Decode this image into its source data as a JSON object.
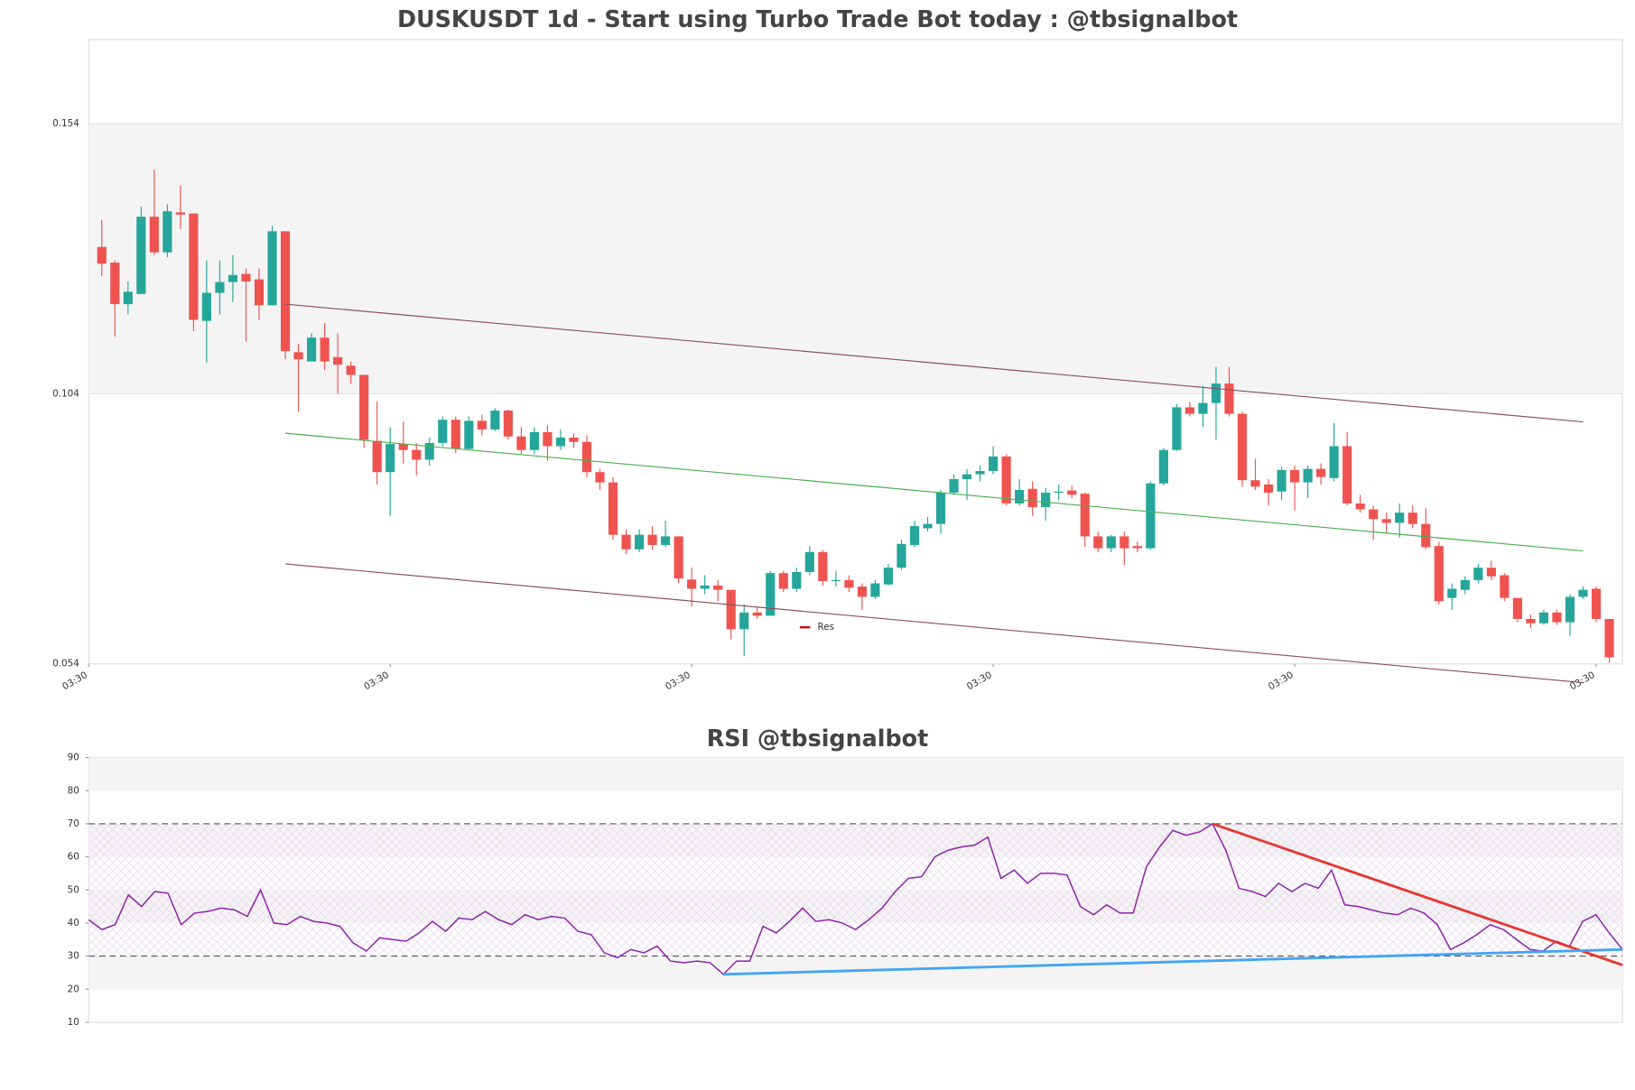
{
  "chart_data": [
    {
      "type": "candlestick",
      "title": "DUSKUSDT 1d - Start using Turbo Trade Bot today : @tbsignalbot",
      "open": [
        0.1312,
        0.1283,
        0.1206,
        0.1225,
        0.1368,
        0.1302,
        0.1376,
        0.1374,
        0.1175,
        0.1227,
        0.1247,
        0.1262,
        0.1252,
        0.1204,
        0.1341,
        0.1117,
        0.11,
        0.1144,
        0.1108,
        0.1092,
        0.1075,
        0.0953,
        0.0895,
        0.0947,
        0.0936,
        0.0918,
        0.0949,
        0.0992,
        0.0938,
        0.099,
        0.0974,
        0.1009,
        0.0961,
        0.0936,
        0.0969,
        0.0943,
        0.0959,
        0.0951,
        0.0895,
        0.0876,
        0.0779,
        0.0752,
        0.0779,
        0.076,
        0.0776,
        0.0696,
        0.0679,
        0.0685,
        0.0677,
        0.0604,
        0.0635,
        0.0629,
        0.0708,
        0.0679,
        0.071,
        0.0747,
        0.0693,
        0.0695,
        0.0683,
        0.0664,
        0.0687,
        0.0718,
        0.076,
        0.0791,
        0.0799,
        0.0857,
        0.0882,
        0.0891,
        0.0897,
        0.0924,
        0.0837,
        0.0864,
        0.083,
        0.0857,
        0.0861,
        0.0855,
        0.0776,
        0.0754,
        0.0776,
        0.0758,
        0.0754,
        0.0874,
        0.0936,
        0.1015,
        0.1003,
        0.1023,
        0.1059,
        0.1003,
        0.088,
        0.0872,
        0.0859,
        0.0899,
        0.0876,
        0.0901,
        0.0884,
        0.0943,
        0.0837,
        0.0826,
        0.0808,
        0.0801,
        0.082,
        0.0799,
        0.0758,
        0.0662,
        0.0677,
        0.0695,
        0.0718,
        0.0704,
        0.0662,
        0.0623,
        0.0615,
        0.0635,
        0.0617,
        0.0664,
        0.0679,
        0.0623
      ],
      "high": [
        0.1362,
        0.1287,
        0.1248,
        0.1387,
        0.1455,
        0.1391,
        0.1426,
        0.1374,
        0.1287,
        0.1287,
        0.1297,
        0.1272,
        0.1272,
        0.1351,
        0.1341,
        0.1133,
        0.1152,
        0.1171,
        0.1152,
        0.11,
        0.1075,
        0.1026,
        0.0978,
        0.0988,
        0.0949,
        0.0959,
        0.0998,
        0.0998,
        0.0998,
        0.1001,
        0.1013,
        0.1011,
        0.0978,
        0.0978,
        0.0982,
        0.0974,
        0.0967,
        0.0963,
        0.0901,
        0.0886,
        0.0789,
        0.0789,
        0.0795,
        0.0805,
        0.0776,
        0.0718,
        0.0704,
        0.0695,
        0.0677,
        0.065,
        0.0644,
        0.0712,
        0.0712,
        0.0718,
        0.0758,
        0.0751,
        0.0712,
        0.0704,
        0.0689,
        0.0695,
        0.0725,
        0.077,
        0.0805,
        0.0812,
        0.0862,
        0.0891,
        0.0901,
        0.0907,
        0.0943,
        0.0928,
        0.0882,
        0.0878,
        0.0866,
        0.0872,
        0.087,
        0.0857,
        0.0785,
        0.0779,
        0.0785,
        0.0766,
        0.0878,
        0.094,
        0.1021,
        0.1025,
        0.1055,
        0.109,
        0.109,
        0.1007,
        0.092,
        0.0882,
        0.0905,
        0.0907,
        0.0907,
        0.0911,
        0.0986,
        0.0969,
        0.0853,
        0.0833,
        0.082,
        0.0837,
        0.0833,
        0.0828,
        0.0766,
        0.0689,
        0.0702,
        0.0725,
        0.0731,
        0.0708,
        0.0662,
        0.0631,
        0.064,
        0.064,
        0.0669,
        0.0683,
        0.0683,
        0.0623
      ],
      "low": [
        0.1258,
        0.1146,
        0.1187,
        0.1225,
        0.1297,
        0.1293,
        0.1345,
        0.1156,
        0.1098,
        0.1187,
        0.121,
        0.1137,
        0.1177,
        0.1204,
        0.1104,
        0.1007,
        0.11,
        0.1084,
        0.104,
        0.1059,
        0.094,
        0.0872,
        0.0814,
        0.0911,
        0.0889,
        0.0907,
        0.0943,
        0.093,
        0.0936,
        0.0963,
        0.0971,
        0.0955,
        0.0928,
        0.0928,
        0.0916,
        0.0936,
        0.094,
        0.0886,
        0.0862,
        0.077,
        0.0743,
        0.0747,
        0.0751,
        0.0756,
        0.0689,
        0.0646,
        0.0669,
        0.0656,
        0.0585,
        0.0554,
        0.0623,
        0.0629,
        0.0673,
        0.0673,
        0.0704,
        0.0685,
        0.0683,
        0.0673,
        0.064,
        0.066,
        0.0685,
        0.0714,
        0.0756,
        0.0785,
        0.0781,
        0.0853,
        0.0843,
        0.0878,
        0.0891,
        0.0833,
        0.0833,
        0.0814,
        0.0805,
        0.0843,
        0.0847,
        0.0756,
        0.0747,
        0.0747,
        0.0723,
        0.0747,
        0.0751,
        0.087,
        0.0934,
        0.0998,
        0.0978,
        0.0955,
        0.0998,
        0.0868,
        0.0862,
        0.0833,
        0.0843,
        0.0824,
        0.0847,
        0.0872,
        0.0878,
        0.0833,
        0.082,
        0.077,
        0.0781,
        0.0774,
        0.0791,
        0.0752,
        0.065,
        0.064,
        0.0669,
        0.0689,
        0.0695,
        0.0656,
        0.0617,
        0.0606,
        0.0612,
        0.0612,
        0.0592,
        0.066,
        0.0617,
        0.0542
      ],
      "close": [
        0.1281,
        0.1206,
        0.1229,
        0.1368,
        0.1302,
        0.1378,
        0.1372,
        0.1177,
        0.1227,
        0.1247,
        0.126,
        0.1248,
        0.1204,
        0.1341,
        0.1119,
        0.1104,
        0.1144,
        0.11,
        0.1094,
        0.1075,
        0.0955,
        0.0895,
        0.0947,
        0.0936,
        0.0918,
        0.0949,
        0.0992,
        0.0938,
        0.099,
        0.0974,
        0.1009,
        0.0961,
        0.0936,
        0.0969,
        0.0943,
        0.0959,
        0.0951,
        0.0895,
        0.0876,
        0.0779,
        0.0752,
        0.0779,
        0.076,
        0.0776,
        0.0698,
        0.0679,
        0.0685,
        0.0677,
        0.0604,
        0.0635,
        0.0629,
        0.0708,
        0.0679,
        0.071,
        0.0747,
        0.0693,
        0.0695,
        0.0681,
        0.0664,
        0.0689,
        0.0718,
        0.0762,
        0.0795,
        0.0799,
        0.0857,
        0.0882,
        0.0891,
        0.0897,
        0.0924,
        0.0837,
        0.0862,
        0.083,
        0.0857,
        0.0859,
        0.0853,
        0.0776,
        0.0754,
        0.0776,
        0.0754,
        0.0754,
        0.0874,
        0.0936,
        0.1015,
        0.1003,
        0.1023,
        0.1059,
        0.1003,
        0.088,
        0.0868,
        0.0857,
        0.0899,
        0.0876,
        0.0901,
        0.0886,
        0.0943,
        0.0837,
        0.0826,
        0.0808,
        0.0801,
        0.082,
        0.0799,
        0.0756,
        0.0656,
        0.0679,
        0.0695,
        0.0718,
        0.0702,
        0.0662,
        0.0623,
        0.0615,
        0.0635,
        0.0617,
        0.0664,
        0.0677,
        0.0623,
        0.0552
      ],
      "up_color": "#26a69a",
      "down_color": "#ef5350",
      "xlim": [
        -1,
        116
      ],
      "xticks": [
        {
          "value": -1,
          "label": "03:30"
        },
        {
          "value": 22,
          "label": "03:30"
        },
        {
          "value": 45,
          "label": "03:30"
        },
        {
          "value": 68,
          "label": "03:30"
        },
        {
          "value": 91,
          "label": "03:30"
        },
        {
          "value": 114,
          "label": "03:30"
        }
      ],
      "ylim": [
        0.054,
        0.1696
      ],
      "yticks": [
        0.054,
        0.104,
        0.154
      ],
      "shaded_range": [
        0.104,
        0.154
      ],
      "lines": [
        {
          "color": "#8a4f5f",
          "x": [
            14,
            113
          ],
          "values": [
            0.1206,
            0.0988
          ]
        },
        {
          "color": "#4caf50",
          "x": [
            14,
            113
          ],
          "values": [
            0.0967,
            0.0749
          ]
        },
        {
          "color": "#8a4f5f",
          "x": [
            14,
            113
          ],
          "values": [
            0.0725,
            0.0505
          ]
        }
      ],
      "legend": {
        "name": "Res",
        "color": "#cc0000"
      }
    },
    {
      "type": "line",
      "title": "RSI @tbsignalbot",
      "series": [
        {
          "color": "#8e24aa",
          "values": [
            41,
            38,
            39.5,
            48.5,
            45,
            49.5,
            49,
            39.5,
            43,
            43.5,
            44.5,
            44,
            42,
            50,
            40,
            39.5,
            42,
            40.5,
            40,
            39,
            34,
            31.5,
            35.5,
            35,
            34.5,
            37,
            40.5,
            37.5,
            41.5,
            41,
            43.5,
            41,
            39.5,
            42.5,
            41,
            42,
            41.5,
            37.5,
            36.5,
            31,
            29.5,
            32,
            31,
            33,
            28.5,
            28,
            28.5,
            28,
            24.5,
            28.5,
            28.5,
            39,
            37,
            40.5,
            44.5,
            40.5,
            41,
            40,
            38,
            41,
            44.5,
            49.5,
            53.5,
            54,
            60,
            62,
            63,
            63.5,
            66,
            53.5,
            56,
            52,
            55,
            55,
            54.5,
            45,
            42.5,
            45.5,
            43,
            43,
            57,
            63,
            68,
            66.5,
            67.5,
            70,
            62,
            50.5,
            49.5,
            48,
            52,
            49.5,
            52,
            50.5,
            56,
            45.5,
            45,
            44,
            43,
            42.5,
            44.5,
            43,
            39.5,
            32,
            34,
            36.5,
            39.5,
            38,
            35,
            32,
            31.5,
            34.5,
            33,
            40.5,
            42.5,
            37,
            32
          ]
        }
      ],
      "xlim": [
        0,
        116
      ],
      "ylim": [
        10,
        90
      ],
      "yticks": [
        10,
        20,
        30,
        40,
        50,
        60,
        70,
        80,
        90
      ],
      "bands": [
        [
          20,
          30
        ],
        [
          40,
          50
        ],
        [
          60,
          70
        ],
        [
          80,
          90
        ]
      ],
      "hatch_range": [
        30,
        70
      ],
      "levels": [
        30,
        70
      ],
      "lines": [
        {
          "color": "#e53935",
          "x": [
            85,
            116
          ],
          "values": [
            70,
            27.3
          ]
        },
        {
          "color": "#42a5f5",
          "x": [
            48,
            116
          ],
          "values": [
            24.5,
            32
          ]
        }
      ]
    }
  ]
}
